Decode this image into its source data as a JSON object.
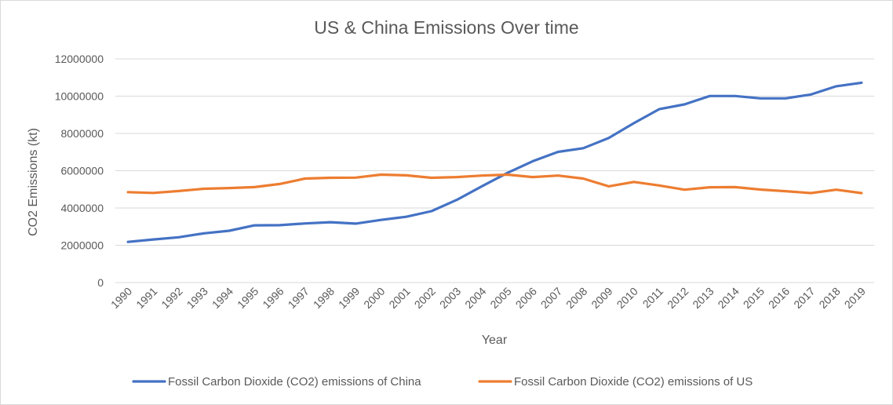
{
  "chart_data": {
    "type": "line",
    "title": "US & China Emissions Over time",
    "xlabel": "Year",
    "ylabel": "CO2 Emissions (kt)",
    "ylim": [
      0,
      12000000
    ],
    "yticks": [
      "0",
      "2000000",
      "4000000",
      "6000000",
      "8000000",
      "10000000",
      "12000000"
    ],
    "grid": true,
    "legend_position": "bottom",
    "categories": [
      "1990",
      "1991",
      "1992",
      "1993",
      "1994",
      "1995",
      "1996",
      "1997",
      "1998",
      "1999",
      "2000",
      "2001",
      "2002",
      "2003",
      "2004",
      "2005",
      "2006",
      "2007",
      "2008",
      "2009",
      "2010",
      "2011",
      "2012",
      "2013",
      "2014",
      "2015",
      "2016",
      "2017",
      "2018",
      "2019"
    ],
    "series": [
      {
        "name": "Fossil Carbon Dioxide (CO2) emissions of China",
        "color": "#4472c4",
        "values": [
          2180000,
          2310000,
          2430000,
          2640000,
          2780000,
          3070000,
          3080000,
          3170000,
          3240000,
          3160000,
          3360000,
          3530000,
          3830000,
          4440000,
          5170000,
          5880000,
          6510000,
          7010000,
          7210000,
          7750000,
          8550000,
          9300000,
          9560000,
          10010000,
          10010000,
          9880000,
          9880000,
          10090000,
          10530000,
          10720000
        ]
      },
      {
        "name": "Fossil Carbon Dioxide (CO2) emissions of US",
        "color": "#ed7d31",
        "values": [
          4850000,
          4810000,
          4910000,
          5030000,
          5070000,
          5120000,
          5290000,
          5580000,
          5620000,
          5630000,
          5790000,
          5750000,
          5620000,
          5660000,
          5740000,
          5790000,
          5660000,
          5740000,
          5580000,
          5160000,
          5400000,
          5210000,
          4980000,
          5110000,
          5120000,
          4990000,
          4900000,
          4800000,
          4980000,
          4800000
        ]
      }
    ]
  }
}
